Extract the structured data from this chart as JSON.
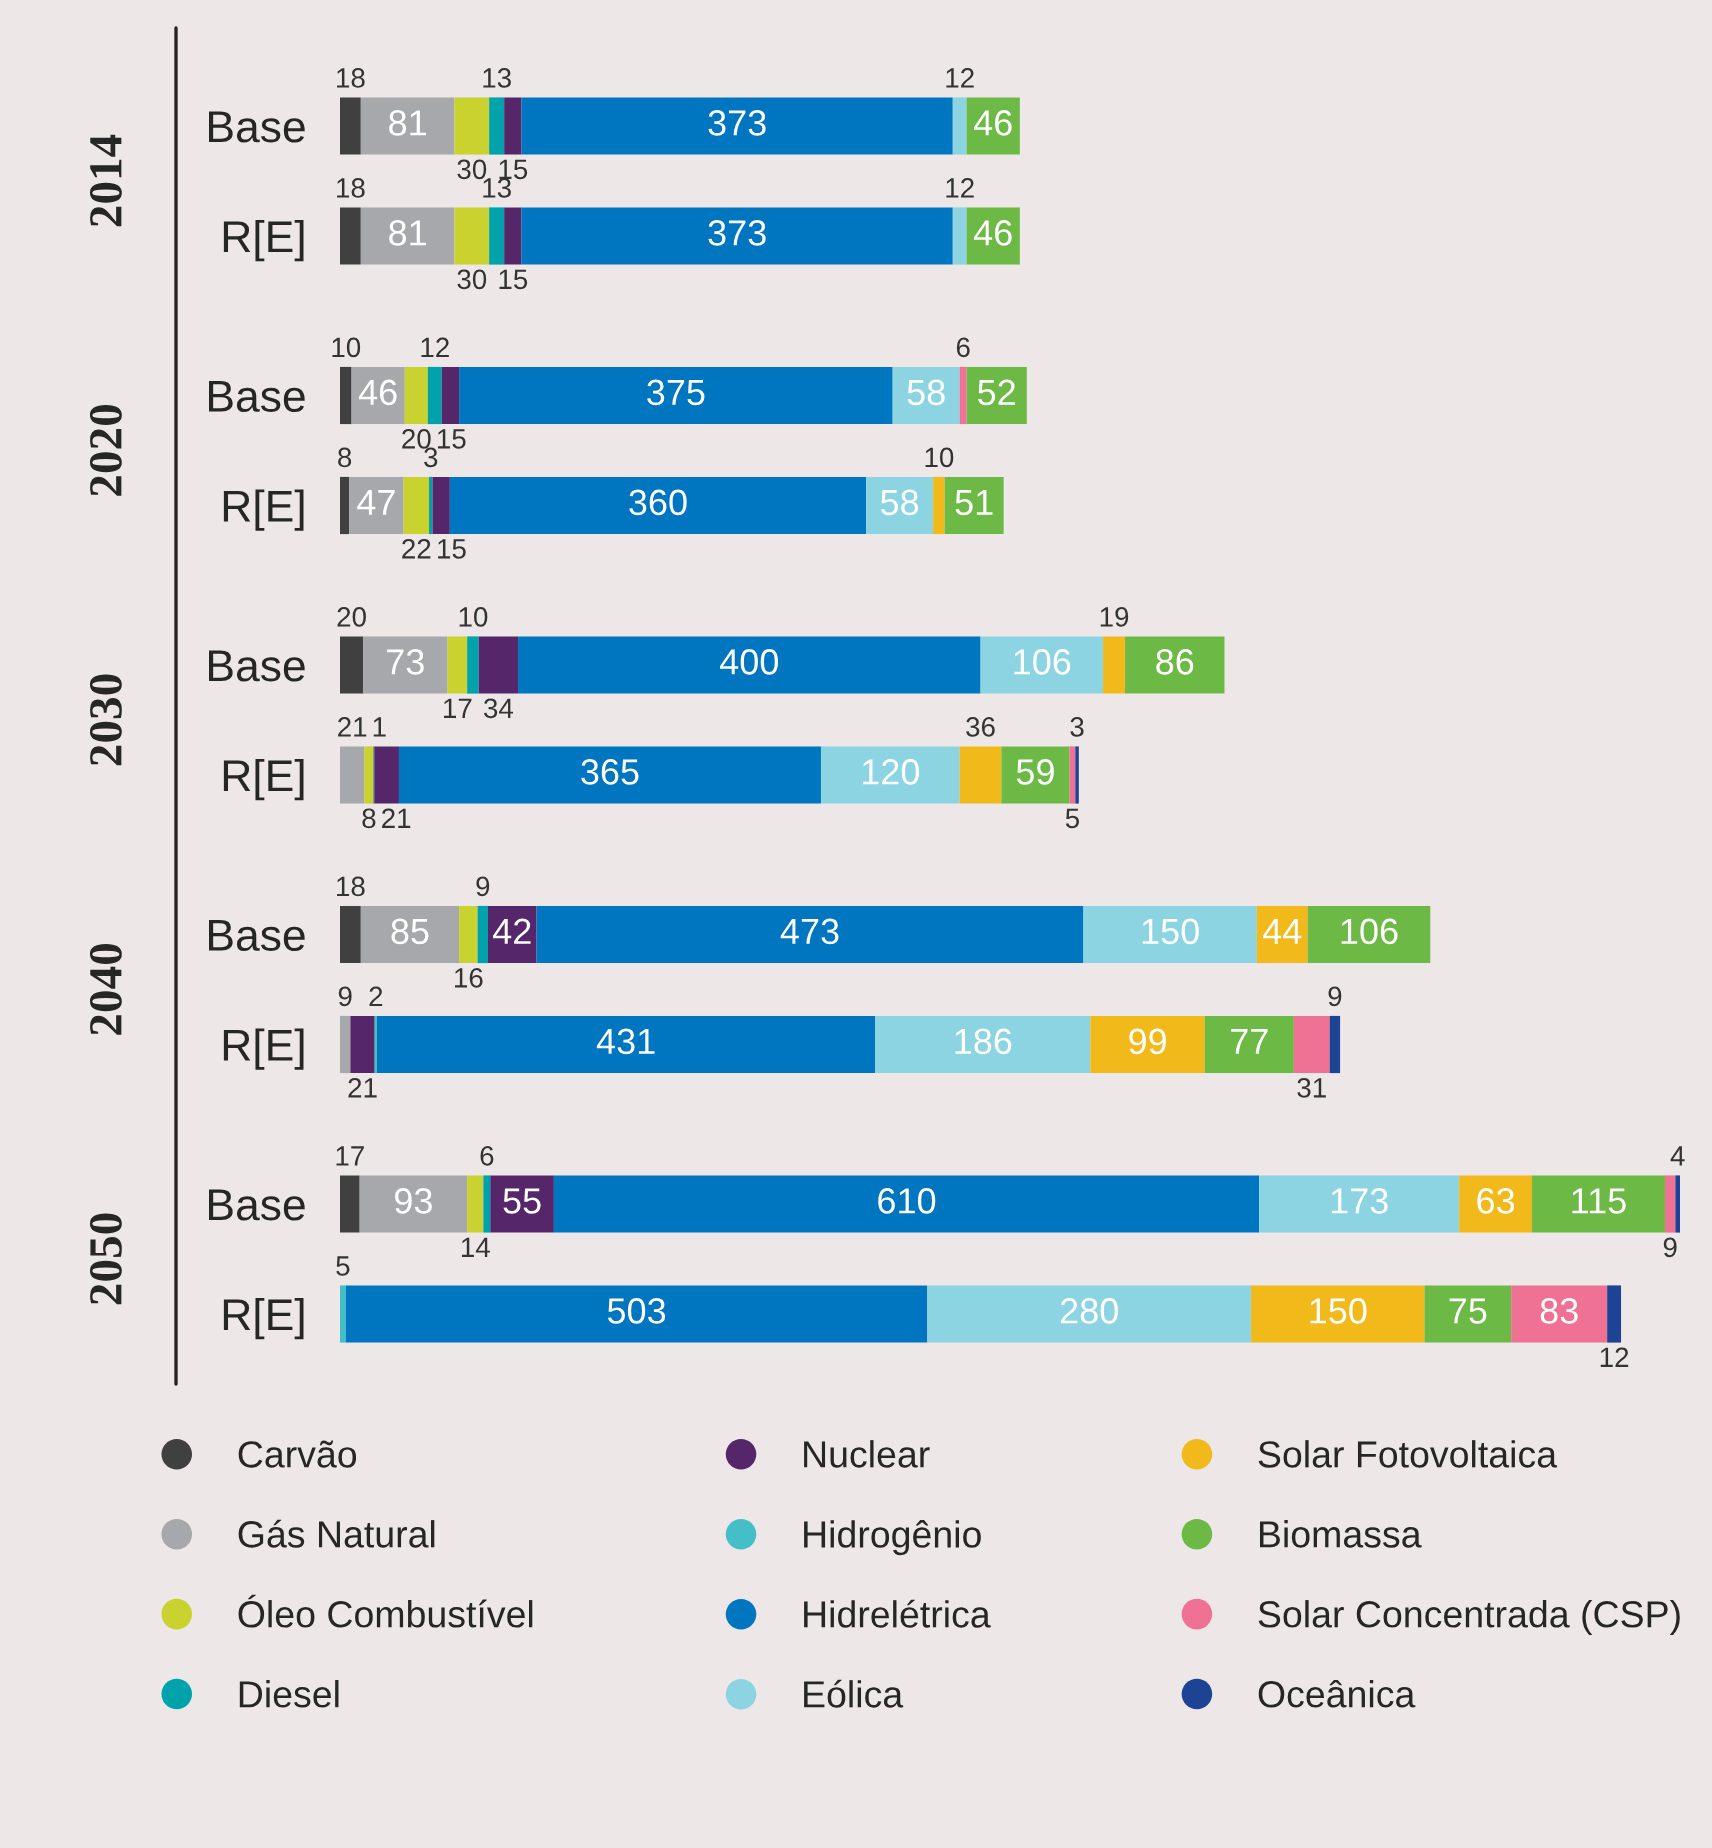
{
  "chart_data": {
    "type": "bar",
    "orientation": "horizontal",
    "stacked": true,
    "data_labels": true,
    "legend": "bottom",
    "categories": [
      "Base",
      "R[E]",
      "Base",
      "R[E]",
      "Base",
      "R[E]",
      "Base",
      "R[E]",
      "Base",
      "R[E]"
    ],
    "annotations": [
      "2014",
      "2020",
      "2030",
      "2040",
      "2050"
    ],
    "series": [
      {
        "name": "Carvão",
        "color": "#404041",
        "values": [
          18,
          18,
          10,
          8,
          20,
          null,
          18,
          null,
          17,
          null
        ]
      },
      {
        "name": "Gás Natural",
        "color": "#a7a8ab",
        "values": [
          81,
          81,
          46,
          47,
          73,
          21,
          85,
          9,
          93,
          null
        ]
      },
      {
        "name": "Óleo Combustível",
        "color": "#c9d22e",
        "values": [
          30,
          30,
          20,
          22,
          17,
          8,
          16,
          null,
          14,
          null
        ]
      },
      {
        "name": "Diesel",
        "color": "#00a3ab",
        "values": [
          13,
          13,
          12,
          3,
          10,
          null,
          9,
          null,
          6,
          null
        ]
      },
      {
        "color": "#1c4394",
        "values": [
          null,
          null,
          null,
          null,
          null,
          1,
          null,
          null,
          null,
          null
        ]
      },
      {
        "name": "Nuclear",
        "color": "#56266b",
        "values": [
          15,
          15,
          15,
          15,
          34,
          21,
          42,
          21,
          55,
          null
        ]
      },
      {
        "name": "Hidrogênio",
        "color": "#45bfc7",
        "values": [
          null,
          null,
          null,
          null,
          null,
          null,
          null,
          2,
          null,
          5
        ]
      },
      {
        "name": "Hidrelétrica",
        "color": "#0076c0",
        "values": [
          373,
          373,
          375,
          360,
          400,
          365,
          473,
          431,
          610,
          503
        ]
      },
      {
        "name": "Eólica",
        "color": "#8dd4e3",
        "values": [
          12,
          12,
          58,
          58,
          106,
          120,
          150,
          186,
          173,
          280
        ]
      },
      {
        "name": "Solar Fotovoltaica",
        "color": "#f2b91b",
        "values": [
          null,
          null,
          null,
          10,
          19,
          36,
          44,
          99,
          63,
          150
        ]
      },
      {
        "color": "#ef7193",
        "values": [
          null,
          null,
          6,
          null,
          null,
          null,
          null,
          null,
          null,
          null
        ]
      },
      {
        "name": "Biomassa",
        "color": "#6cb945",
        "values": [
          46,
          46,
          52,
          51,
          86,
          59,
          106,
          77,
          115,
          75
        ]
      },
      {
        "name": "Solar Concentrada (CSP)",
        "color": "#ef7193",
        "values": [
          null,
          null,
          null,
          null,
          null,
          5,
          null,
          31,
          9,
          83
        ]
      },
      {
        "name": "Oceânica",
        "color": "#1c4394",
        "values": [
          null,
          null,
          null,
          null,
          null,
          3,
          null,
          9,
          4,
          12
        ]
      }
    ]
  }
}
